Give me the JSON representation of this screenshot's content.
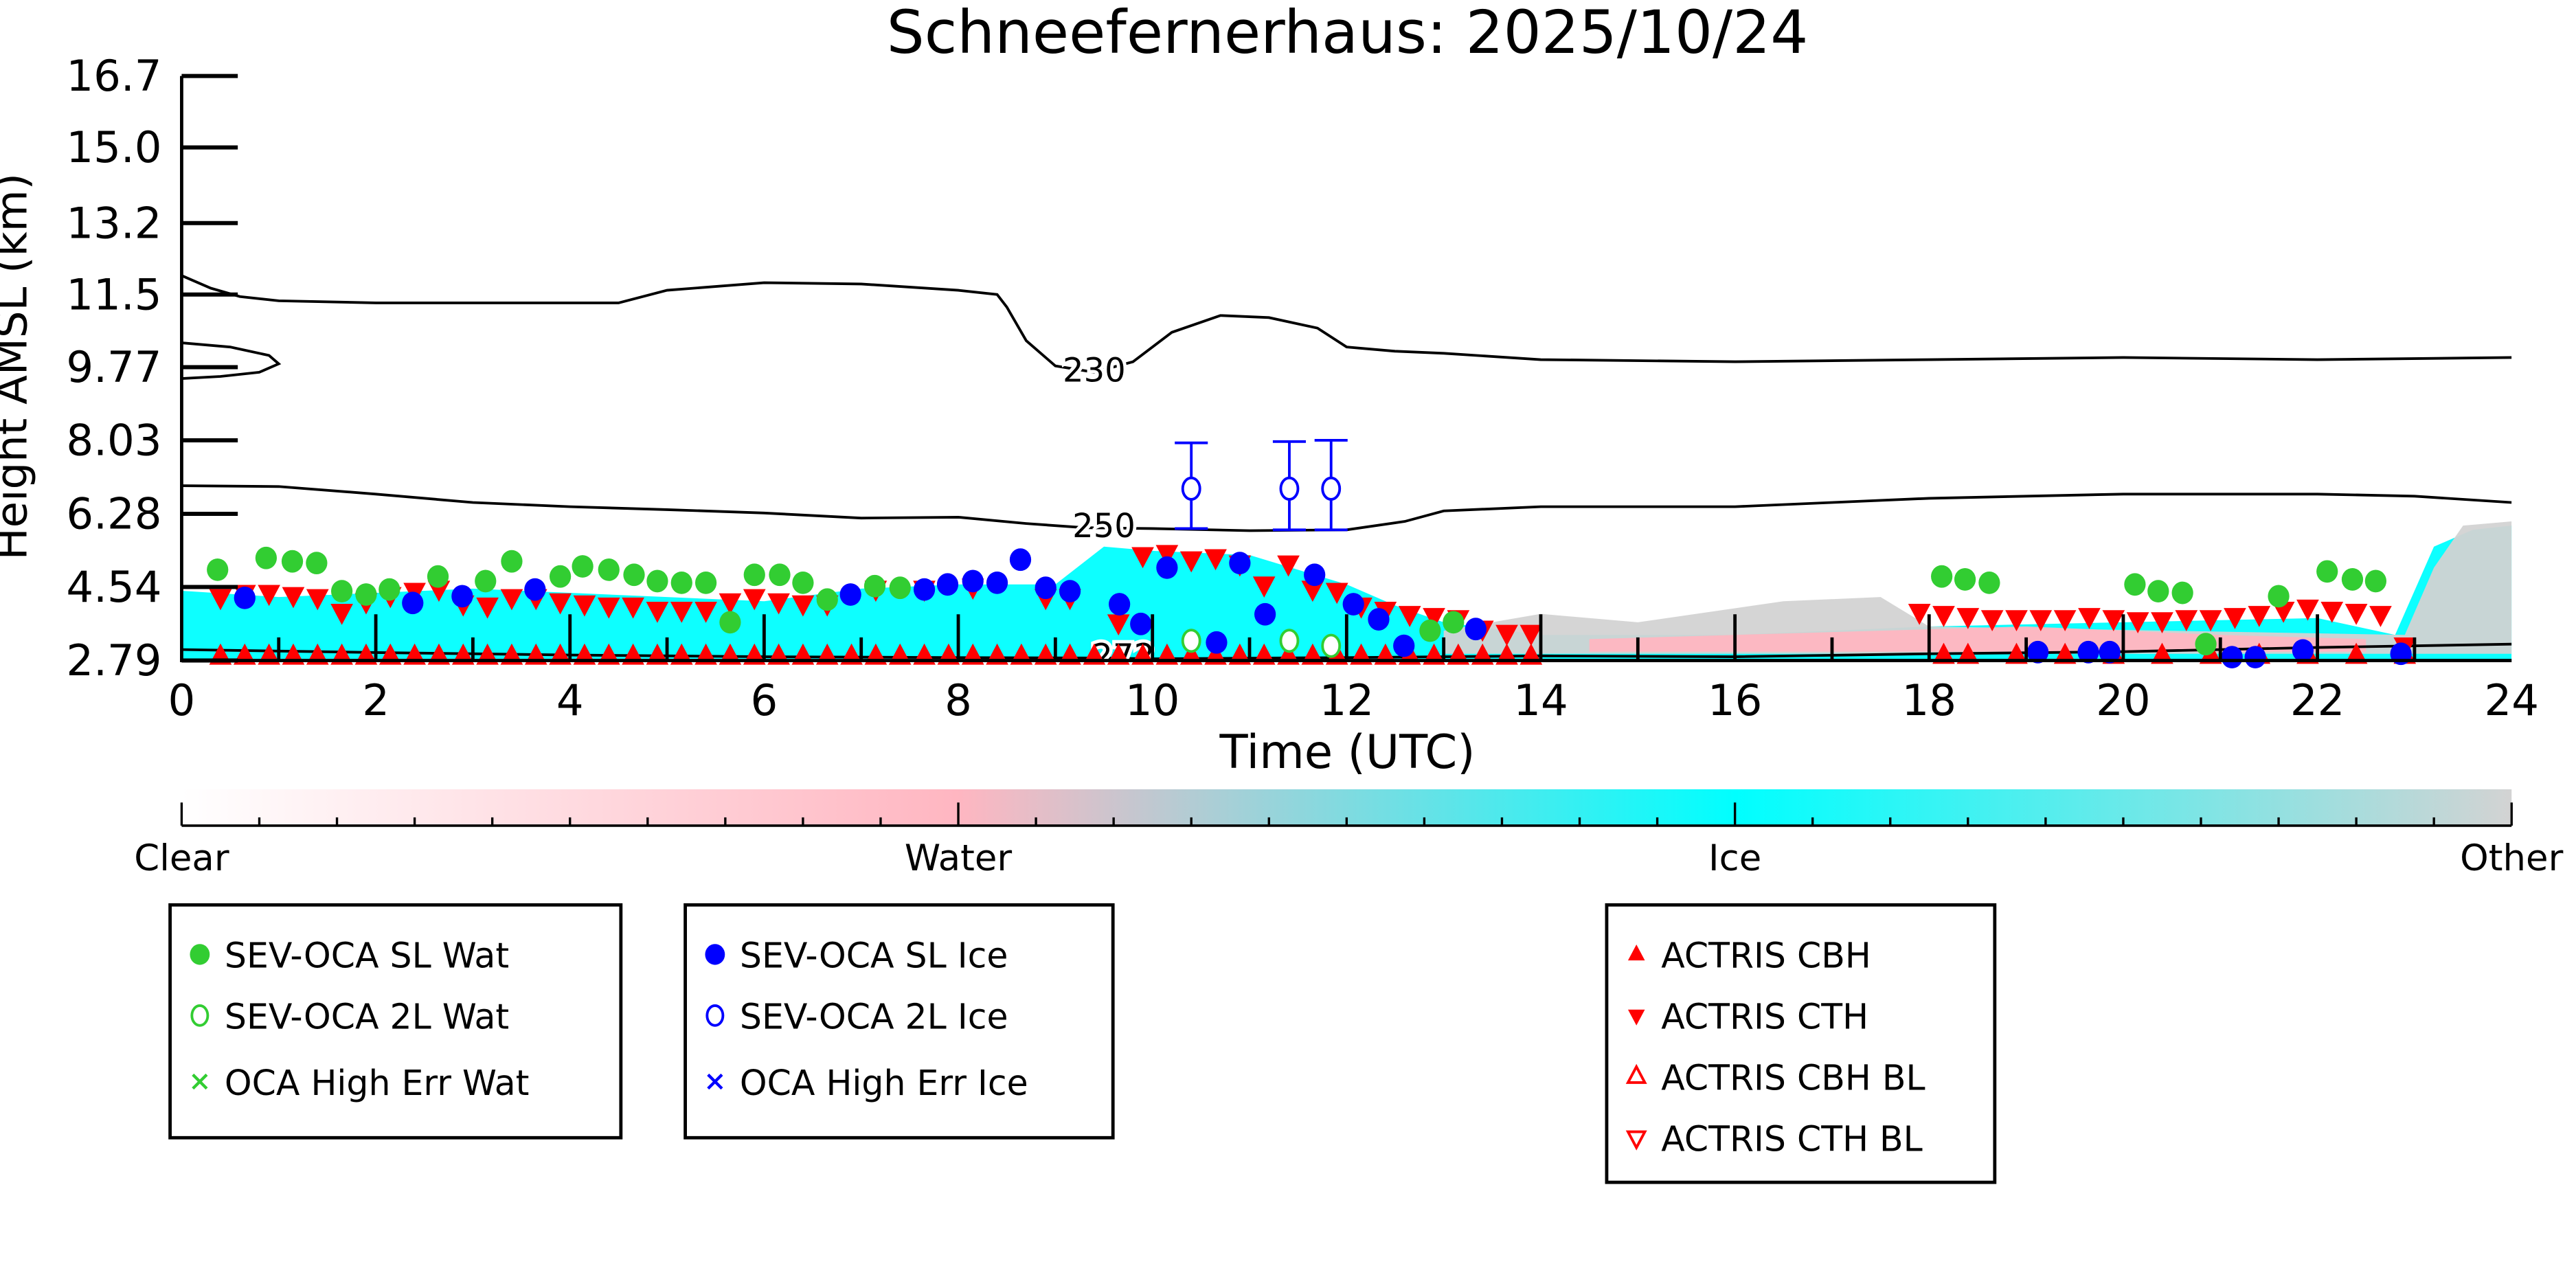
{
  "chart_data": {
    "type": "scatter",
    "title": "Schneefernerhaus: 2025/10/24",
    "xlabel": "Time (UTC)",
    "ylabel": "Height AMSL (km)",
    "xlim": [
      0,
      24
    ],
    "ylim": [
      2.79,
      16.7
    ],
    "xticks": [
      "0",
      "2",
      "4",
      "6",
      "8",
      "10",
      "12",
      "14",
      "16",
      "18",
      "20",
      "22",
      "24"
    ],
    "xtick_values": [
      0,
      2,
      4,
      6,
      8,
      10,
      12,
      14,
      16,
      18,
      20,
      22,
      24
    ],
    "yticks": [
      "2.79",
      "4.54",
      "6.28",
      "8.03",
      "9.77",
      "11.5",
      "13.2",
      "15.0",
      "16.7"
    ],
    "ytick_values": [
      2.79,
      4.54,
      6.28,
      8.03,
      9.77,
      11.5,
      13.2,
      15.0,
      16.7
    ],
    "colorbar": {
      "labels": [
        "Clear",
        "Water",
        "Ice",
        "Other"
      ],
      "colors": [
        "#ffffff",
        "#ffb6c1",
        "#00ffff",
        "#d3d3d3"
      ]
    },
    "cloud_phase_regions": [
      {
        "phase": "Ice",
        "color": "#00ffff",
        "outline": [
          [
            0,
            2.79
          ],
          [
            0,
            4.45
          ],
          [
            1,
            4.3
          ],
          [
            2,
            4.4
          ],
          [
            3,
            4.5
          ],
          [
            4,
            4.4
          ],
          [
            5,
            4.3
          ],
          [
            6,
            4.2
          ],
          [
            7,
            4.5
          ],
          [
            8,
            4.6
          ],
          [
            9,
            4.6
          ],
          [
            9.5,
            5.5
          ],
          [
            10,
            5.4
          ],
          [
            11,
            5.3
          ],
          [
            12,
            4.6
          ],
          [
            12.5,
            4.1
          ],
          [
            13,
            3.7
          ],
          [
            14,
            3.4
          ],
          [
            16,
            3.4
          ],
          [
            18,
            3.6
          ],
          [
            20,
            3.7
          ],
          [
            22,
            3.8
          ],
          [
            22.8,
            3.4
          ],
          [
            23.2,
            5.5
          ],
          [
            23.6,
            5.9
          ],
          [
            24,
            6.0
          ],
          [
            24,
            2.79
          ]
        ]
      },
      {
        "phase": "Other",
        "color": "#d3d3d3",
        "outline": [
          [
            13,
            2.95
          ],
          [
            13,
            3.5
          ],
          [
            14,
            3.9
          ],
          [
            15,
            3.7
          ],
          [
            16.5,
            4.2
          ],
          [
            17.5,
            4.3
          ],
          [
            18,
            3.6
          ],
          [
            22.9,
            3.4
          ],
          [
            23.2,
            5.0
          ],
          [
            23.5,
            6.0
          ],
          [
            24,
            6.1
          ],
          [
            24,
            2.95
          ]
        ]
      },
      {
        "phase": "Water",
        "color": "#ffb6c1",
        "outline": [
          [
            14.5,
            3.0
          ],
          [
            14.5,
            3.3
          ],
          [
            16,
            3.4
          ],
          [
            17.5,
            3.5
          ],
          [
            19,
            3.6
          ],
          [
            21,
            3.4
          ],
          [
            22.5,
            3.3
          ],
          [
            22.5,
            3.0
          ]
        ]
      }
    ],
    "contours": [
      {
        "label": "230",
        "points": [
          [
            0,
            11.95
          ],
          [
            0.3,
            11.65
          ],
          [
            0.6,
            11.45
          ],
          [
            1,
            11.35
          ],
          [
            2,
            11.3
          ],
          [
            3,
            11.3
          ],
          [
            4.5,
            11.3
          ],
          [
            5,
            11.6
          ],
          [
            6,
            11.78
          ],
          [
            7,
            11.75
          ],
          [
            8,
            11.6
          ],
          [
            8.4,
            11.5
          ],
          [
            8.5,
            11.2
          ],
          [
            8.7,
            10.4
          ],
          [
            9,
            9.8
          ],
          [
            9.4,
            9.65
          ],
          [
            9.8,
            9.9
          ],
          [
            10.2,
            10.6
          ],
          [
            10.7,
            11.0
          ],
          [
            11.2,
            10.95
          ],
          [
            11.7,
            10.7
          ],
          [
            12,
            10.25
          ],
          [
            12.5,
            10.15
          ],
          [
            13,
            10.1
          ],
          [
            14,
            9.95
          ],
          [
            16,
            9.9
          ],
          [
            18,
            9.95
          ],
          [
            20,
            10.0
          ],
          [
            22,
            9.95
          ],
          [
            24,
            10.0
          ]
        ],
        "label_at": [
          9.4,
          9.7
        ]
      },
      {
        "label": "",
        "points": [
          [
            0,
            10.35
          ],
          [
            0.5,
            10.25
          ],
          [
            0.9,
            10.05
          ],
          [
            1,
            9.85
          ],
          [
            0.8,
            9.65
          ],
          [
            0.4,
            9.55
          ],
          [
            0,
            9.5
          ]
        ]
      },
      {
        "label": "250",
        "points": [
          [
            0,
            6.95
          ],
          [
            1,
            6.93
          ],
          [
            2,
            6.75
          ],
          [
            3,
            6.55
          ],
          [
            4,
            6.45
          ],
          [
            5,
            6.38
          ],
          [
            6,
            6.3
          ],
          [
            7,
            6.18
          ],
          [
            8,
            6.2
          ],
          [
            8.7,
            6.05
          ],
          [
            9.3,
            5.95
          ],
          [
            10,
            5.93
          ],
          [
            11,
            5.88
          ],
          [
            12,
            5.9
          ],
          [
            12.6,
            6.1
          ],
          [
            13,
            6.35
          ],
          [
            14,
            6.45
          ],
          [
            16,
            6.45
          ],
          [
            17,
            6.55
          ],
          [
            18,
            6.65
          ],
          [
            20,
            6.75
          ],
          [
            22,
            6.75
          ],
          [
            23,
            6.7
          ],
          [
            24,
            6.55
          ]
        ],
        "label_at": [
          9.5,
          6.0
        ]
      },
      {
        "label": "272",
        "points": [
          [
            0,
            3.05
          ],
          [
            2,
            2.98
          ],
          [
            4,
            2.92
          ],
          [
            6,
            2.88
          ],
          [
            8,
            2.86
          ],
          [
            9.5,
            2.85
          ],
          [
            10,
            2.83
          ],
          [
            12,
            2.86
          ],
          [
            14,
            2.9
          ],
          [
            16,
            2.88
          ],
          [
            18,
            2.95
          ],
          [
            20,
            3.0
          ],
          [
            22,
            3.1
          ],
          [
            24,
            3.18
          ]
        ],
        "label_at": [
          9.7,
          2.9
        ]
      }
    ],
    "series": [
      {
        "name": "SEV-OCA SL Wat",
        "marker": "filled-circle",
        "color": "#32cd32",
        "x": [
          0.37,
          0.87,
          1.14,
          1.39,
          1.65,
          1.9,
          2.14,
          2.64,
          3.13,
          3.4,
          3.9,
          4.13,
          4.4,
          4.66,
          4.9,
          5.15,
          5.4,
          5.65,
          5.9,
          6.16,
          6.4,
          6.65,
          7.14,
          7.4,
          12.86,
          13.1,
          18.13,
          18.37,
          18.62,
          20.12,
          20.36,
          20.61,
          20.85,
          21.6,
          22.1,
          22.36,
          22.6
        ],
        "y": [
          4.95,
          5.23,
          5.15,
          5.11,
          4.44,
          4.36,
          4.48,
          4.79,
          4.68,
          5.15,
          4.79,
          5.03,
          4.95,
          4.83,
          4.68,
          4.64,
          4.64,
          3.7,
          4.83,
          4.83,
          4.64,
          4.24,
          4.56,
          4.52,
          3.5,
          3.7,
          4.79,
          4.72,
          4.64,
          4.6,
          4.44,
          4.4,
          3.18,
          4.32,
          4.91,
          4.72,
          4.68
        ]
      },
      {
        "name": "SEV-OCA 2L Wat",
        "marker": "open-circle",
        "color": "#32cd32",
        "x": [
          10.4,
          11.41,
          11.84
        ],
        "y": [
          3.26,
          3.26,
          3.14
        ]
      },
      {
        "name": "OCA High Err Wat",
        "marker": "x",
        "color": "#32cd32",
        "x": [],
        "y": []
      },
      {
        "name": "SEV-OCA SL Ice",
        "marker": "filled-circle",
        "color": "#0000ff",
        "x": [
          0.65,
          2.38,
          2.89,
          3.64,
          6.89,
          7.65,
          7.89,
          8.15,
          8.4,
          8.64,
          8.9,
          9.15,
          9.66,
          9.88,
          10.15,
          10.66,
          10.9,
          11.16,
          11.67,
          12.07,
          12.33,
          12.59,
          13.33,
          19.12,
          19.64,
          19.86,
          21.12,
          21.36,
          21.85,
          22.86
        ],
        "y": [
          4.28,
          4.16,
          4.32,
          4.48,
          4.36,
          4.48,
          4.6,
          4.68,
          4.64,
          5.19,
          4.52,
          4.44,
          4.13,
          3.66,
          5.0,
          3.22,
          5.11,
          3.89,
          4.83,
          4.13,
          3.77,
          3.14,
          3.54,
          2.99,
          2.99,
          2.99,
          2.87,
          2.87,
          3.03,
          2.95
        ]
      },
      {
        "name": "SEV-OCA 2L Ice",
        "marker": "open-circle",
        "color": "#0000ff",
        "x": [
          10.4,
          11.41,
          11.84
        ],
        "y": [
          6.88,
          6.88,
          6.88
        ],
        "err_low": [
          5.93,
          5.9,
          5.9
        ],
        "err_high": [
          7.97,
          8.0,
          8.03
        ]
      },
      {
        "name": "OCA High Err Ice",
        "marker": "x",
        "color": "#0000ff",
        "x": [],
        "y": []
      },
      {
        "name": "ACTRIS CBH",
        "marker": "triangle-up",
        "color": "#ff0000",
        "x": [
          0.4,
          0.65,
          0.9,
          1.15,
          1.4,
          1.65,
          1.9,
          2.15,
          2.4,
          2.65,
          2.9,
          3.15,
          3.4,
          3.65,
          3.9,
          4.15,
          4.4,
          4.65,
          4.9,
          5.15,
          5.4,
          5.65,
          5.9,
          6.15,
          6.4,
          6.65,
          6.9,
          7.15,
          7.4,
          7.65,
          7.9,
          8.15,
          8.4,
          8.65,
          8.9,
          9.15,
          9.4,
          9.65,
          9.9,
          10.15,
          10.4,
          10.65,
          10.9,
          11.15,
          11.4,
          11.65,
          11.9,
          12.15,
          12.4,
          12.65,
          12.9,
          13.15,
          13.4,
          13.65,
          13.9,
          18.15,
          18.4,
          18.9,
          19.4,
          19.9,
          20.4,
          20.9,
          21.4,
          21.9,
          22.4,
          22.9
        ],
        "y": [
          2.88,
          2.88,
          2.88,
          2.88,
          2.88,
          2.88,
          2.88,
          2.88,
          2.88,
          2.88,
          2.88,
          2.88,
          2.88,
          2.88,
          2.88,
          2.88,
          2.88,
          2.88,
          2.88,
          2.88,
          2.88,
          2.88,
          2.88,
          2.88,
          2.88,
          2.88,
          2.88,
          2.88,
          2.88,
          2.88,
          2.88,
          2.88,
          2.88,
          2.88,
          2.88,
          2.88,
          2.88,
          2.88,
          2.88,
          2.88,
          2.88,
          2.88,
          2.88,
          2.88,
          2.88,
          2.88,
          2.88,
          2.88,
          2.88,
          2.88,
          2.88,
          2.88,
          2.88,
          2.88,
          2.88,
          2.9,
          2.9,
          2.9,
          2.9,
          2.9,
          2.9,
          2.9,
          2.9,
          2.9,
          2.9,
          2.9
        ]
      },
      {
        "name": "ACTRIS CTH",
        "marker": "triangle-down",
        "color": "#ff0000",
        "x": [
          0.4,
          0.65,
          0.9,
          1.15,
          1.4,
          1.65,
          1.9,
          2.15,
          2.4,
          2.65,
          2.9,
          3.15,
          3.4,
          3.65,
          3.9,
          4.15,
          4.4,
          4.65,
          4.9,
          5.15,
          5.4,
          5.65,
          5.9,
          6.15,
          6.4,
          6.65,
          7.15,
          7.65,
          8.15,
          8.9,
          9.15,
          9.65,
          9.9,
          10.15,
          10.4,
          10.65,
          10.9,
          11.15,
          11.4,
          11.65,
          11.9,
          12.15,
          12.4,
          12.65,
          12.9,
          13.15,
          13.4,
          13.65,
          13.9,
          17.9,
          18.15,
          18.4,
          18.65,
          18.9,
          19.15,
          19.4,
          19.65,
          19.9,
          20.15,
          20.4,
          20.65,
          20.9,
          21.15,
          21.4,
          21.65,
          21.9,
          22.15,
          22.4,
          22.65,
          22.9
        ],
        "y": [
          4.3,
          4.4,
          4.4,
          4.35,
          4.3,
          3.95,
          4.2,
          4.35,
          4.45,
          4.5,
          4.15,
          4.1,
          4.3,
          4.3,
          4.2,
          4.15,
          4.1,
          4.1,
          4.0,
          4.0,
          4.0,
          4.2,
          4.3,
          4.2,
          4.15,
          4.15,
          4.5,
          4.5,
          4.55,
          4.3,
          4.3,
          3.7,
          5.3,
          5.35,
          5.2,
          5.25,
          5.1,
          4.6,
          5.1,
          4.5,
          4.45,
          4.1,
          4.0,
          3.9,
          3.85,
          3.8,
          3.55,
          3.45,
          3.45,
          3.95,
          3.9,
          3.85,
          3.8,
          3.8,
          3.8,
          3.8,
          3.85,
          3.8,
          3.75,
          3.75,
          3.8,
          3.8,
          3.85,
          3.9,
          4.0,
          4.05,
          4.0,
          3.95,
          3.9,
          3.15
        ]
      },
      {
        "name": "ACTRIS CBH BL",
        "marker": "open-triangle-up",
        "color": "#ff0000",
        "x": [],
        "y": []
      },
      {
        "name": "ACTRIS CTH BL",
        "marker": "open-triangle-down",
        "color": "#ff0000",
        "x": [],
        "y": []
      }
    ],
    "legends": [
      {
        "entries": [
          0,
          1,
          2
        ]
      },
      {
        "entries": [
          3,
          4,
          5
        ]
      },
      {
        "entries": [
          6,
          7,
          8,
          9
        ]
      }
    ]
  }
}
